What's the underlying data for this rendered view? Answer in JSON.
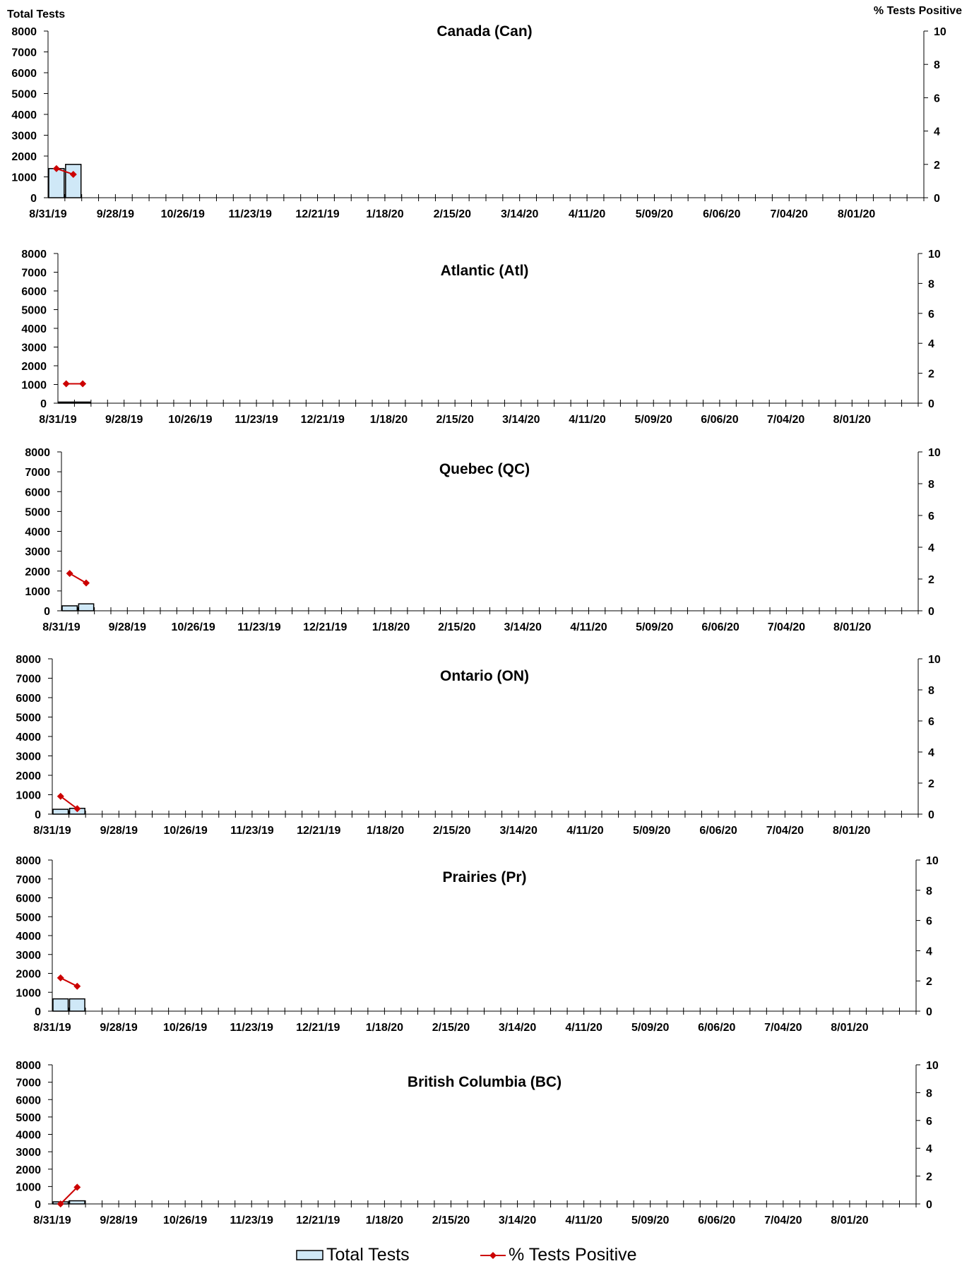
{
  "figure": {
    "left_axis_title": "Total Tests",
    "right_axis_title": "% Tests Positive",
    "legend": {
      "bar_label": "Total Tests",
      "line_label": "% Tests Positive"
    },
    "colors": {
      "bar_fill": "#cfe8f7",
      "bar_stroke": "#000000",
      "line": "#cc0000",
      "axis": "#000000"
    }
  },
  "chart_data": [
    {
      "type": "bar",
      "title": "Canada (Can)",
      "x_tick_labels": [
        "8/31/19",
        "9/28/19",
        "10/26/19",
        "11/23/19",
        "12/21/19",
        "1/18/20",
        "2/15/20",
        "3/14/20",
        "4/11/20",
        "5/09/20",
        "6/06/20",
        "7/04/20",
        "8/01/20"
      ],
      "y_left": {
        "range": [
          0,
          8000
        ],
        "ticks": [
          0,
          1000,
          2000,
          3000,
          4000,
          5000,
          6000,
          7000,
          8000
        ]
      },
      "y_right": {
        "range": [
          0,
          10
        ],
        "ticks": [
          0,
          2,
          4,
          6,
          8,
          10
        ]
      },
      "series": [
        {
          "name": "Total Tests",
          "kind": "bar",
          "x": [
            "8/31/19",
            "9/07/19"
          ],
          "values": [
            1400,
            1600
          ]
        },
        {
          "name": "% Tests Positive",
          "kind": "line",
          "axis": "right",
          "x": [
            "8/31/19",
            "9/07/19"
          ],
          "values": [
            1.75,
            1.4
          ]
        }
      ]
    },
    {
      "type": "bar",
      "title": "Atlantic (Atl)",
      "x_tick_labels": [
        "8/31/19",
        "9/28/19",
        "10/26/19",
        "11/23/19",
        "12/21/19",
        "1/18/20",
        "2/15/20",
        "3/14/20",
        "4/11/20",
        "5/09/20",
        "6/06/20",
        "7/04/20",
        "8/01/20"
      ],
      "y_left": {
        "range": [
          0,
          8000
        ],
        "ticks": [
          0,
          1000,
          2000,
          3000,
          4000,
          5000,
          6000,
          7000,
          8000
        ]
      },
      "y_right": {
        "range": [
          0,
          10
        ],
        "ticks": [
          0,
          2,
          4,
          6,
          8,
          10
        ]
      },
      "series": [
        {
          "name": "Total Tests",
          "kind": "bar",
          "x": [
            "8/31/19",
            "9/07/19"
          ],
          "values": [
            60,
            60
          ]
        },
        {
          "name": "% Tests Positive",
          "kind": "line",
          "axis": "right",
          "x": [
            "8/31/19",
            "9/07/19"
          ],
          "values": [
            1.3,
            1.3
          ]
        }
      ]
    },
    {
      "type": "bar",
      "title": "Quebec (QC)",
      "x_tick_labels": [
        "8/31/19",
        "9/28/19",
        "10/26/19",
        "11/23/19",
        "12/21/19",
        "1/18/20",
        "2/15/20",
        "3/14/20",
        "4/11/20",
        "5/09/20",
        "6/06/20",
        "7/04/20",
        "8/01/20"
      ],
      "y_left": {
        "range": [
          0,
          8000
        ],
        "ticks": [
          0,
          1000,
          2000,
          3000,
          4000,
          5000,
          6000,
          7000,
          8000
        ]
      },
      "y_right": {
        "range": [
          0,
          10
        ],
        "ticks": [
          0,
          2,
          4,
          6,
          8,
          10
        ]
      },
      "series": [
        {
          "name": "Total Tests",
          "kind": "bar",
          "x": [
            "8/31/19",
            "9/07/19"
          ],
          "values": [
            250,
            350
          ]
        },
        {
          "name": "% Tests Positive",
          "kind": "line",
          "axis": "right",
          "x": [
            "8/31/19",
            "9/07/19"
          ],
          "values": [
            2.35,
            1.75
          ]
        }
      ]
    },
    {
      "type": "bar",
      "title": "Ontario (ON)",
      "x_tick_labels": [
        "8/31/19",
        "9/28/19",
        "10/26/19",
        "11/23/19",
        "12/21/19",
        "1/18/20",
        "2/15/20",
        "3/14/20",
        "4/11/20",
        "5/09/20",
        "6/06/20",
        "7/04/20",
        "8/01/20"
      ],
      "y_left": {
        "range": [
          0,
          8000
        ],
        "ticks": [
          0,
          1000,
          2000,
          3000,
          4000,
          5000,
          6000,
          7000,
          8000
        ]
      },
      "y_right": {
        "range": [
          0,
          10
        ],
        "ticks": [
          0,
          2,
          4,
          6,
          8,
          10
        ]
      },
      "series": [
        {
          "name": "Total Tests",
          "kind": "bar",
          "x": [
            "8/31/19",
            "9/07/19"
          ],
          "values": [
            250,
            300
          ]
        },
        {
          "name": "% Tests Positive",
          "kind": "line",
          "axis": "right",
          "x": [
            "8/31/19",
            "9/07/19"
          ],
          "values": [
            1.15,
            0.35
          ]
        }
      ]
    },
    {
      "type": "bar",
      "title": "Prairies (Pr)",
      "x_tick_labels": [
        "8/31/19",
        "9/28/19",
        "10/26/19",
        "11/23/19",
        "12/21/19",
        "1/18/20",
        "2/15/20",
        "3/14/20",
        "4/11/20",
        "5/09/20",
        "6/06/20",
        "7/04/20",
        "8/01/20"
      ],
      "y_left": {
        "range": [
          0,
          8000
        ],
        "ticks": [
          0,
          1000,
          2000,
          3000,
          4000,
          5000,
          6000,
          7000,
          8000
        ]
      },
      "y_right": {
        "range": [
          0,
          10
        ],
        "ticks": [
          0,
          2,
          4,
          6,
          8,
          10
        ]
      },
      "series": [
        {
          "name": "Total Tests",
          "kind": "bar",
          "x": [
            "8/31/19",
            "9/07/19"
          ],
          "values": [
            650,
            650
          ]
        },
        {
          "name": "% Tests Positive",
          "kind": "line",
          "axis": "right",
          "x": [
            "8/31/19",
            "9/07/19"
          ],
          "values": [
            2.2,
            1.65
          ]
        }
      ]
    },
    {
      "type": "bar",
      "title": "British Columbia (BC)",
      "x_tick_labels": [
        "8/31/19",
        "9/28/19",
        "10/26/19",
        "11/23/19",
        "12/21/19",
        "1/18/20",
        "2/15/20",
        "3/14/20",
        "4/11/20",
        "5/09/20",
        "6/06/20",
        "7/04/20",
        "8/01/20"
      ],
      "y_left": {
        "range": [
          0,
          8000
        ],
        "ticks": [
          0,
          1000,
          2000,
          3000,
          4000,
          5000,
          6000,
          7000,
          8000
        ]
      },
      "y_right": {
        "range": [
          0,
          10
        ],
        "ticks": [
          0,
          2,
          4,
          6,
          8,
          10
        ]
      },
      "series": [
        {
          "name": "Total Tests",
          "kind": "bar",
          "x": [
            "8/31/19",
            "9/07/19"
          ],
          "values": [
            120,
            180
          ]
        },
        {
          "name": "% Tests Positive",
          "kind": "line",
          "axis": "right",
          "x": [
            "8/31/19",
            "9/07/19"
          ],
          "values": [
            0,
            1.2
          ]
        }
      ]
    }
  ]
}
